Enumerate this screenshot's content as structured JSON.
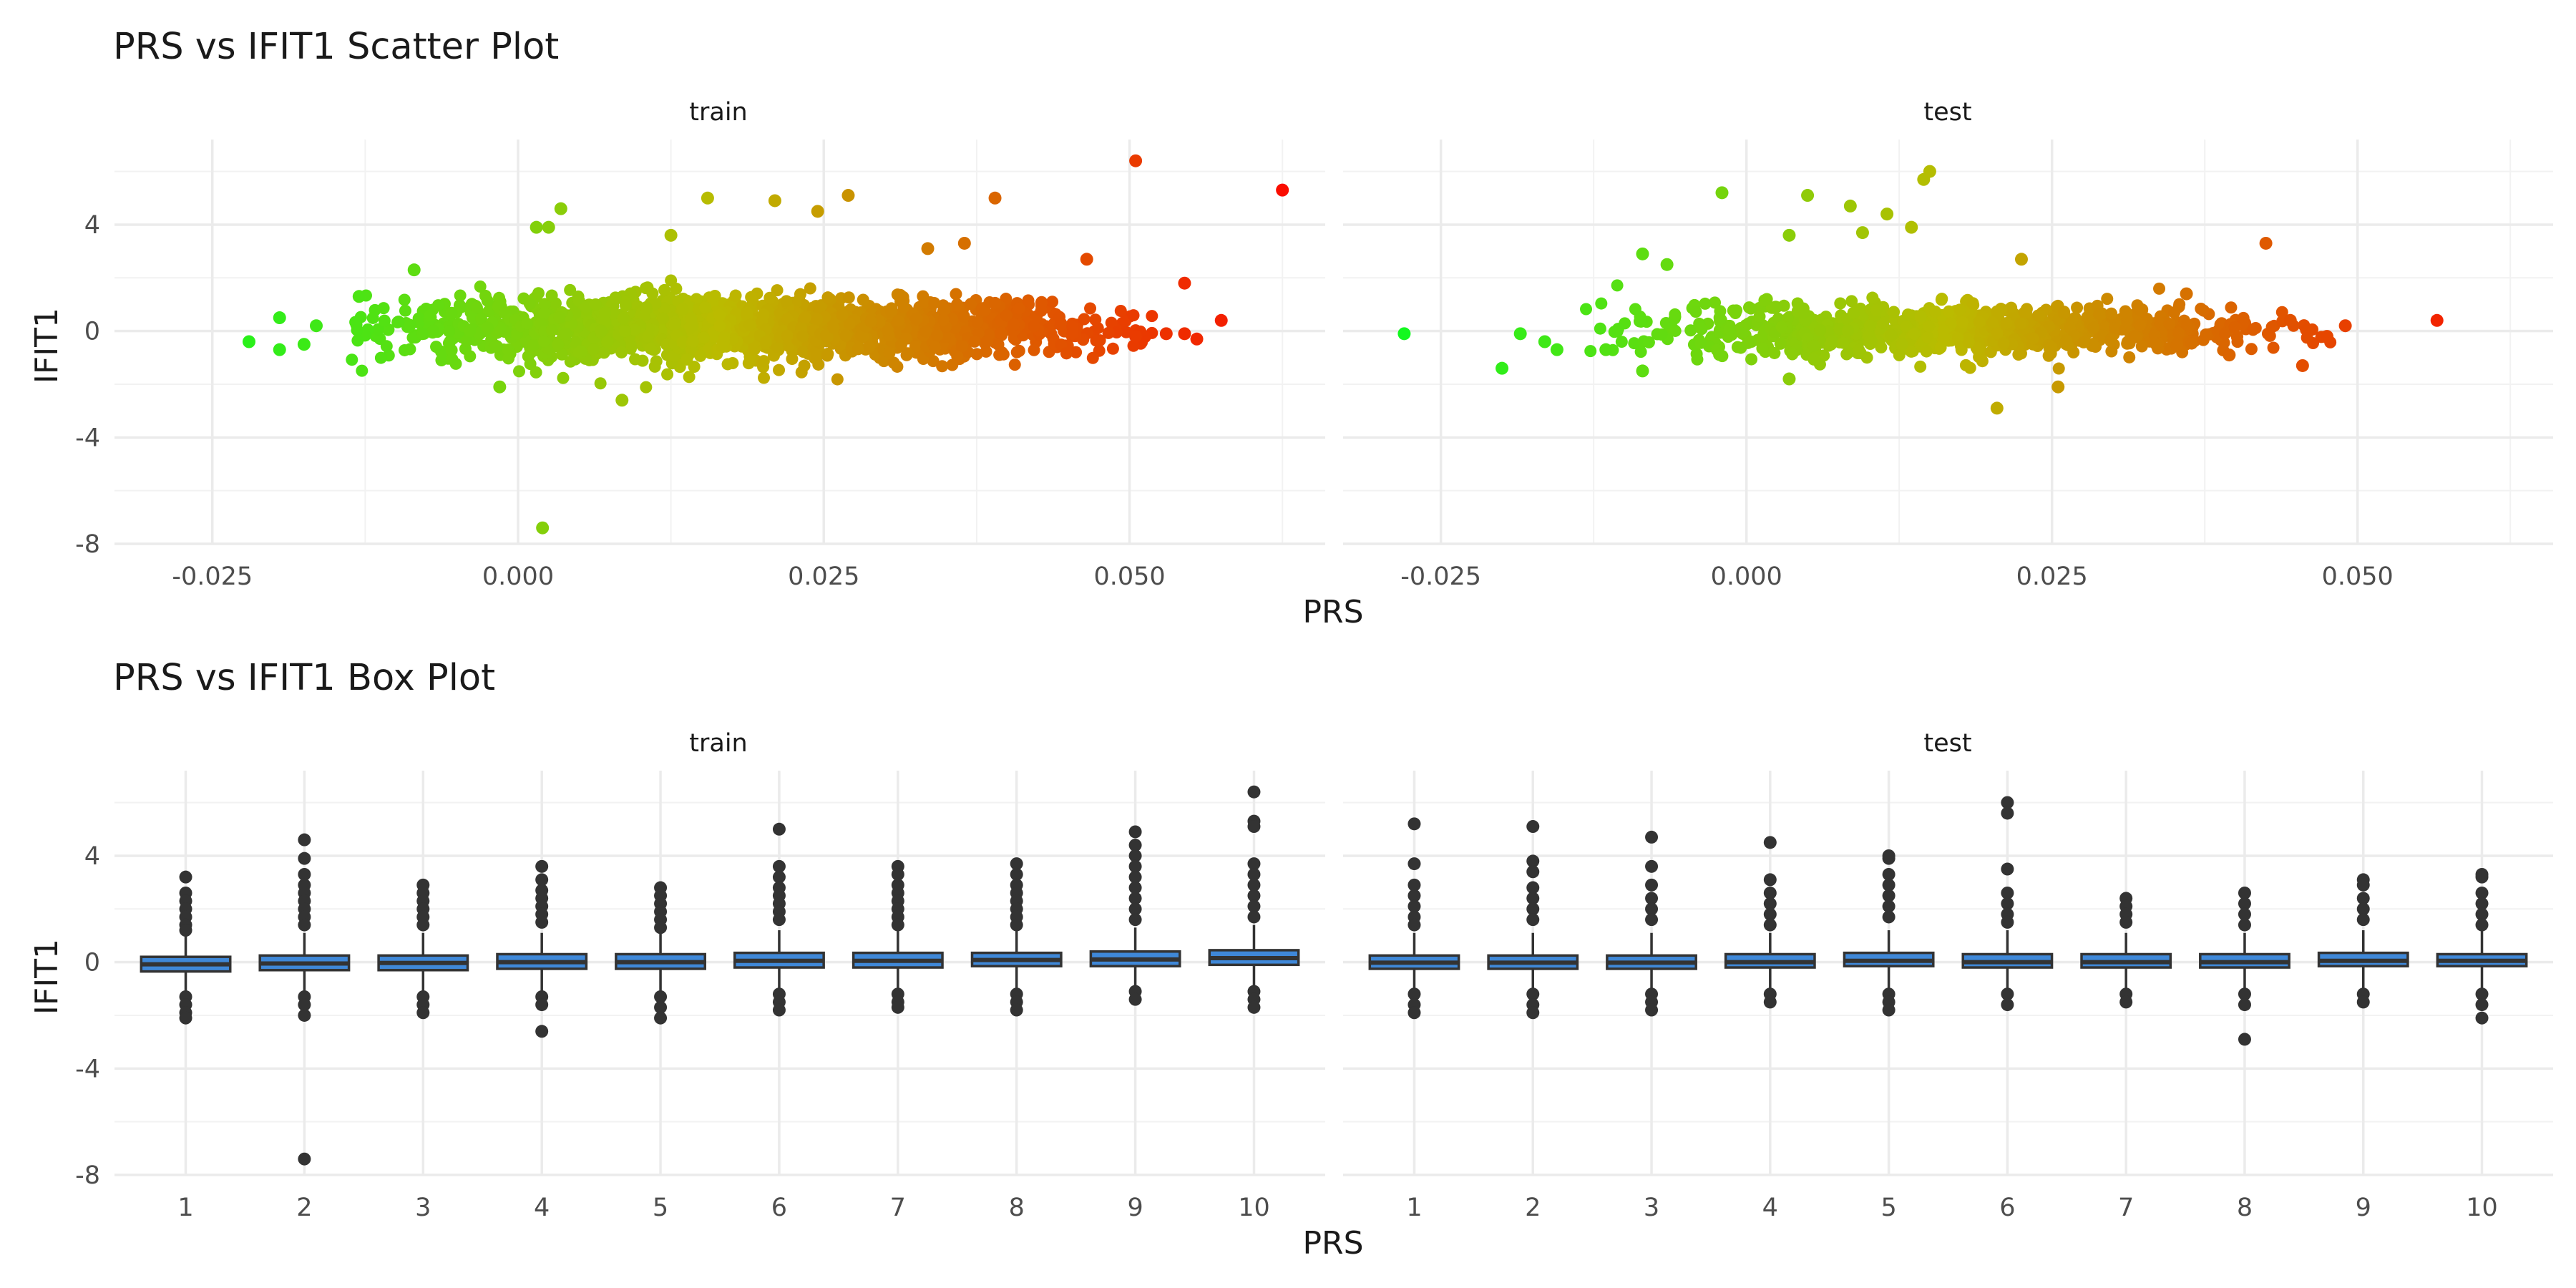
{
  "chart_data": [
    {
      "type": "scatter",
      "title": "PRS vs IFIT1 Scatter Plot",
      "xlabel": "PRS",
      "ylabel": "IFIT1",
      "x_ticks": [
        -0.025,
        0.0,
        0.025,
        0.05
      ],
      "x_tick_labels": [
        "-0.025",
        "0.000",
        "0.025",
        "0.050"
      ],
      "y_ticks": [
        -8,
        -4,
        0,
        4
      ],
      "y_tick_labels": [
        "-8",
        "-4",
        "0",
        "4"
      ],
      "xlim": [
        -0.033,
        0.066
      ],
      "ylim": [
        -8,
        7.2
      ],
      "grid": true,
      "color_scale": {
        "low": "#00ff22",
        "mid": "#bbbb00",
        "high": "#ff0000"
      },
      "facets": [
        {
          "label": "train",
          "points": [
            {
              "x": -0.022,
              "y": -0.4
            },
            {
              "x": -0.0195,
              "y": 0.5
            },
            {
              "x": -0.0195,
              "y": -0.7
            },
            {
              "x": -0.0175,
              "y": -0.5
            },
            {
              "x": -0.0165,
              "y": 0.2
            },
            {
              "x": -0.013,
              "y": 1.3
            },
            {
              "x": -0.0085,
              "y": 2.3
            },
            {
              "x": -0.0015,
              "y": -2.1
            },
            {
              "x": 0.0015,
              "y": 3.9
            },
            {
              "x": 0.0025,
              "y": 3.9
            },
            {
              "x": 0.0035,
              "y": 4.6
            },
            {
              "x": 0.002,
              "y": -7.4
            },
            {
              "x": 0.0085,
              "y": -2.6
            },
            {
              "x": 0.0155,
              "y": 5.0
            },
            {
              "x": 0.021,
              "y": 4.9
            },
            {
              "x": 0.0245,
              "y": 4.5
            },
            {
              "x": 0.027,
              "y": 5.1
            },
            {
              "x": 0.039,
              "y": 5.0
            },
            {
              "x": 0.0505,
              "y": 6.4
            },
            {
              "x": 0.0625,
              "y": 5.3
            },
            {
              "x": 0.0465,
              "y": 2.7
            },
            {
              "x": 0.0545,
              "y": 1.8
            },
            {
              "x": 0.0575,
              "y": 0.4
            },
            {
              "x": 0.0545,
              "y": -0.1
            },
            {
              "x": 0.0555,
              "y": -0.3
            },
            {
              "x": 0.0505,
              "y": -0.2
            },
            {
              "x": 0.053,
              "y": -0.1
            },
            {
              "x": 0.0365,
              "y": 3.3
            },
            {
              "x": 0.0125,
              "y": 3.6
            },
            {
              "x": 0.0335,
              "y": 3.1
            }
          ],
          "cloud": {
            "x_range": [
              -0.012,
              0.05
            ],
            "y_center": 0.1,
            "y_spread": 1.0,
            "n": 1900
          }
        },
        {
          "label": "test",
          "points": [
            {
              "x": -0.028,
              "y": -0.1
            },
            {
              "x": -0.02,
              "y": -1.4
            },
            {
              "x": -0.0185,
              "y": -0.1
            },
            {
              "x": -0.0165,
              "y": -0.4
            },
            {
              "x": -0.0155,
              "y": -0.7
            },
            {
              "x": -0.0085,
              "y": 2.9
            },
            {
              "x": -0.0065,
              "y": 2.5
            },
            {
              "x": -0.0085,
              "y": -1.5
            },
            {
              "x": -0.002,
              "y": 5.2
            },
            {
              "x": 0.005,
              "y": 5.1
            },
            {
              "x": 0.0085,
              "y": 4.7
            },
            {
              "x": 0.0115,
              "y": 4.4
            },
            {
              "x": 0.0145,
              "y": 5.7
            },
            {
              "x": 0.015,
              "y": 6.0
            },
            {
              "x": 0.0135,
              "y": 3.9
            },
            {
              "x": 0.0095,
              "y": 3.7
            },
            {
              "x": 0.0205,
              "y": -2.9
            },
            {
              "x": 0.0255,
              "y": -2.1
            },
            {
              "x": 0.0425,
              "y": 3.3
            },
            {
              "x": 0.0565,
              "y": 0.4
            },
            {
              "x": 0.049,
              "y": 0.2
            },
            {
              "x": 0.0455,
              "y": -1.3
            },
            {
              "x": 0.0395,
              "y": -0.9
            },
            {
              "x": 0.0445,
              "y": 0.4
            },
            {
              "x": 0.0475,
              "y": -0.2
            },
            {
              "x": 0.0225,
              "y": 2.7
            },
            {
              "x": 0.0035,
              "y": 3.6
            },
            {
              "x": -0.0115,
              "y": -0.7
            },
            {
              "x": 0.0035,
              "y": -1.8
            },
            {
              "x": 0.036,
              "y": 1.4
            }
          ],
          "cloud": {
            "x_range": [
              -0.012,
              0.046
            ],
            "y_center": 0.05,
            "y_spread": 0.85,
            "n": 900
          }
        }
      ]
    },
    {
      "type": "box",
      "title": "PRS vs IFIT1 Box Plot",
      "xlabel": "PRS",
      "ylabel": "IFIT1",
      "categories": [
        "1",
        "2",
        "3",
        "4",
        "5",
        "6",
        "7",
        "8",
        "9",
        "10"
      ],
      "y_ticks": [
        -8,
        -4,
        0,
        4
      ],
      "y_tick_labels": [
        "-8",
        "-4",
        "0",
        "4"
      ],
      "ylim": [
        -8,
        7.2
      ],
      "grid": true,
      "box_fill": "#3f88d8",
      "box_stroke": "#333333",
      "facets": [
        {
          "label": "train",
          "boxes": [
            {
              "category": "1",
              "q1": -0.35,
              "median": -0.08,
              "q3": 0.2,
              "whisker_low": -1.1,
              "whisker_high": 1.0,
              "outliers": [
                3.2,
                2.6,
                2.3,
                2.0,
                1.7,
                1.4,
                1.2,
                -1.3,
                -1.6,
                -1.9,
                -2.1
              ]
            },
            {
              "category": "2",
              "q1": -0.3,
              "median": -0.05,
              "q3": 0.25,
              "whisker_low": -1.1,
              "whisker_high": 1.1,
              "outliers": [
                4.6,
                3.9,
                3.3,
                2.9,
                2.6,
                2.3,
                2.0,
                1.7,
                1.4,
                -1.3,
                -1.6,
                -2.0,
                -7.4
              ]
            },
            {
              "category": "3",
              "q1": -0.3,
              "median": -0.03,
              "q3": 0.25,
              "whisker_low": -1.1,
              "whisker_high": 1.1,
              "outliers": [
                2.9,
                2.6,
                2.3,
                2.0,
                1.7,
                1.4,
                -1.3,
                -1.6,
                -1.9
              ]
            },
            {
              "category": "4",
              "q1": -0.25,
              "median": 0.0,
              "q3": 0.3,
              "whisker_low": -1.1,
              "whisker_high": 1.1,
              "outliers": [
                3.6,
                3.1,
                2.7,
                2.4,
                2.1,
                1.8,
                1.5,
                -1.3,
                -1.6,
                -2.6
              ]
            },
            {
              "category": "5",
              "q1": -0.25,
              "median": 0.0,
              "q3": 0.3,
              "whisker_low": -1.1,
              "whisker_high": 1.1,
              "outliers": [
                2.8,
                2.5,
                2.2,
                1.9,
                1.6,
                1.3,
                -1.3,
                -1.7,
                -2.1
              ]
            },
            {
              "category": "6",
              "q1": -0.2,
              "median": 0.05,
              "q3": 0.35,
              "whisker_low": -1.0,
              "whisker_high": 1.2,
              "outliers": [
                5.0,
                3.6,
                3.2,
                2.8,
                2.5,
                2.2,
                1.9,
                1.6,
                -1.2,
                -1.5,
                -1.8
              ]
            },
            {
              "category": "7",
              "q1": -0.2,
              "median": 0.05,
              "q3": 0.35,
              "whisker_low": -1.0,
              "whisker_high": 1.2,
              "outliers": [
                3.6,
                3.3,
                2.9,
                2.6,
                2.3,
                2.0,
                1.7,
                1.4,
                -1.2,
                -1.5,
                -1.7
              ]
            },
            {
              "category": "8",
              "q1": -0.15,
              "median": 0.08,
              "q3": 0.35,
              "whisker_low": -1.0,
              "whisker_high": 1.2,
              "outliers": [
                3.7,
                3.3,
                2.9,
                2.6,
                2.3,
                2.0,
                1.7,
                1.4,
                -1.2,
                -1.5,
                -1.8
              ]
            },
            {
              "category": "9",
              "q1": -0.15,
              "median": 0.1,
              "q3": 0.4,
              "whisker_low": -0.9,
              "whisker_high": 1.3,
              "outliers": [
                4.9,
                4.4,
                4.0,
                3.6,
                3.2,
                2.8,
                2.4,
                2.0,
                1.6,
                -1.1,
                -1.4
              ]
            },
            {
              "category": "10",
              "q1": -0.1,
              "median": 0.15,
              "q3": 0.45,
              "whisker_low": -0.9,
              "whisker_high": 1.4,
              "outliers": [
                6.4,
                5.3,
                5.1,
                3.7,
                3.3,
                2.9,
                2.5,
                2.1,
                1.7,
                -1.1,
                -1.4,
                -1.7
              ]
            }
          ]
        },
        {
          "label": "test",
          "boxes": [
            {
              "category": "1",
              "q1": -0.25,
              "median": -0.02,
              "q3": 0.25,
              "whisker_low": -1.1,
              "whisker_high": 1.1,
              "outliers": [
                5.2,
                3.7,
                2.9,
                2.5,
                2.1,
                1.7,
                1.4,
                -1.2,
                -1.6,
                -1.9
              ]
            },
            {
              "category": "2",
              "q1": -0.25,
              "median": -0.02,
              "q3": 0.25,
              "whisker_low": -1.1,
              "whisker_high": 1.1,
              "outliers": [
                5.1,
                3.8,
                3.4,
                2.8,
                2.4,
                2.0,
                1.6,
                -1.2,
                -1.6,
                -1.9
              ]
            },
            {
              "category": "3",
              "q1": -0.25,
              "median": -0.02,
              "q3": 0.25,
              "whisker_low": -1.1,
              "whisker_high": 1.1,
              "outliers": [
                4.7,
                3.6,
                2.9,
                2.4,
                2.0,
                1.6,
                -1.2,
                -1.5,
                -1.8
              ]
            },
            {
              "category": "4",
              "q1": -0.2,
              "median": 0.0,
              "q3": 0.3,
              "whisker_low": -1.0,
              "whisker_high": 1.1,
              "outliers": [
                4.5,
                3.1,
                2.6,
                2.2,
                1.8,
                1.4,
                -1.2,
                -1.5
              ]
            },
            {
              "category": "5",
              "q1": -0.15,
              "median": 0.05,
              "q3": 0.35,
              "whisker_low": -1.0,
              "whisker_high": 1.2,
              "outliers": [
                4.0,
                3.9,
                3.3,
                2.9,
                2.5,
                2.1,
                1.7,
                -1.2,
                -1.5,
                -1.8
              ]
            },
            {
              "category": "6",
              "q1": -0.2,
              "median": 0.0,
              "q3": 0.3,
              "whisker_low": -1.0,
              "whisker_high": 1.2,
              "outliers": [
                6.0,
                5.6,
                3.5,
                2.6,
                2.2,
                1.8,
                1.5,
                -1.2,
                -1.6
              ]
            },
            {
              "category": "7",
              "q1": -0.2,
              "median": 0.0,
              "q3": 0.3,
              "whisker_low": -1.0,
              "whisker_high": 1.1,
              "outliers": [
                2.4,
                2.1,
                1.8,
                1.5,
                -1.2,
                -1.5
              ]
            },
            {
              "category": "8",
              "q1": -0.2,
              "median": 0.0,
              "q3": 0.3,
              "whisker_low": -1.0,
              "whisker_high": 1.1,
              "outliers": [
                2.6,
                2.2,
                1.8,
                1.4,
                -1.2,
                -1.6,
                -2.9
              ]
            },
            {
              "category": "9",
              "q1": -0.15,
              "median": 0.05,
              "q3": 0.35,
              "whisker_low": -1.0,
              "whisker_high": 1.2,
              "outliers": [
                3.1,
                2.9,
                2.4,
                2.0,
                1.6,
                -1.2,
                -1.5
              ]
            },
            {
              "category": "10",
              "q1": -0.15,
              "median": 0.05,
              "q3": 0.3,
              "whisker_low": -1.0,
              "whisker_high": 1.2,
              "outliers": [
                3.3,
                3.2,
                2.6,
                2.2,
                1.8,
                1.4,
                -1.2,
                -1.6,
                -2.1
              ]
            }
          ]
        }
      ]
    }
  ]
}
